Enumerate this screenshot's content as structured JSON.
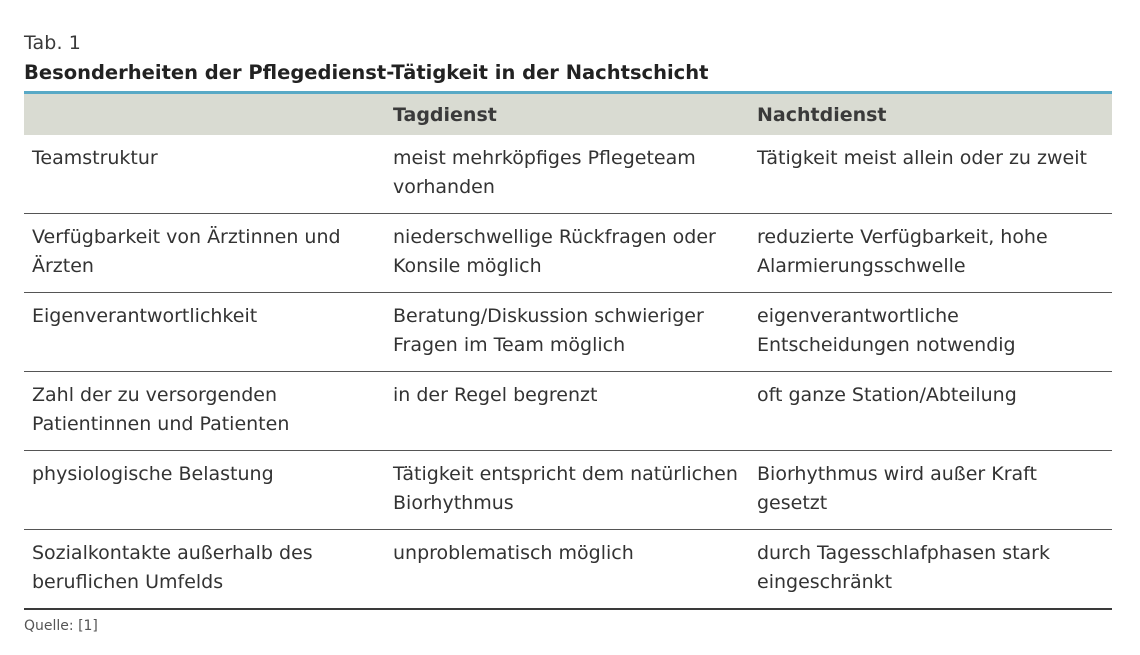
{
  "label": "Tab. 1",
  "title": "Besonderheiten der Pflegedienst-Tätigkeit in der Nachtschicht",
  "table": {
    "headers": [
      "",
      "Tagdienst",
      "Nachtdienst"
    ],
    "rows": [
      {
        "aspect": "Teamstruktur",
        "tag": "meist mehrköpfiges Pflegeteam vorhanden",
        "nacht": "Tätigkeit meist allein oder zu zweit"
      },
      {
        "aspect": "Verfügbarkeit von Ärztinnen und Ärzten",
        "tag": "niederschwellige Rückfragen oder Konsile möglich",
        "nacht": "reduzierte Verfügbarkeit, hohe Alarmierungsschwelle"
      },
      {
        "aspect": "Eigenverantwortlichkeit",
        "tag": "Beratung/Diskussion schwieriger Fragen im Team möglich",
        "nacht": "eigenverantwortliche Entscheidungen notwendig"
      },
      {
        "aspect": "Zahl der zu versorgenden Patientinnen und Patienten",
        "tag": "in der Regel begrenzt",
        "nacht": "oft ganze Station/Abteilung"
      },
      {
        "aspect": "physiologische Belastung",
        "tag": "Tätigkeit entspricht dem natürlichen Biorhythmus",
        "nacht": "Biorhythmus wird außer Kraft gesetzt"
      },
      {
        "aspect": "Sozialkontakte außerhalb des beruflichen Umfelds",
        "tag": "unproblematisch möglich",
        "nacht": "durch Tagesschlafphasen stark eingeschränkt"
      }
    ]
  },
  "source": "Quelle: [1]",
  "colors": {
    "header_bg": "#d9dbd2",
    "accent_rule": "#58a9c6"
  }
}
